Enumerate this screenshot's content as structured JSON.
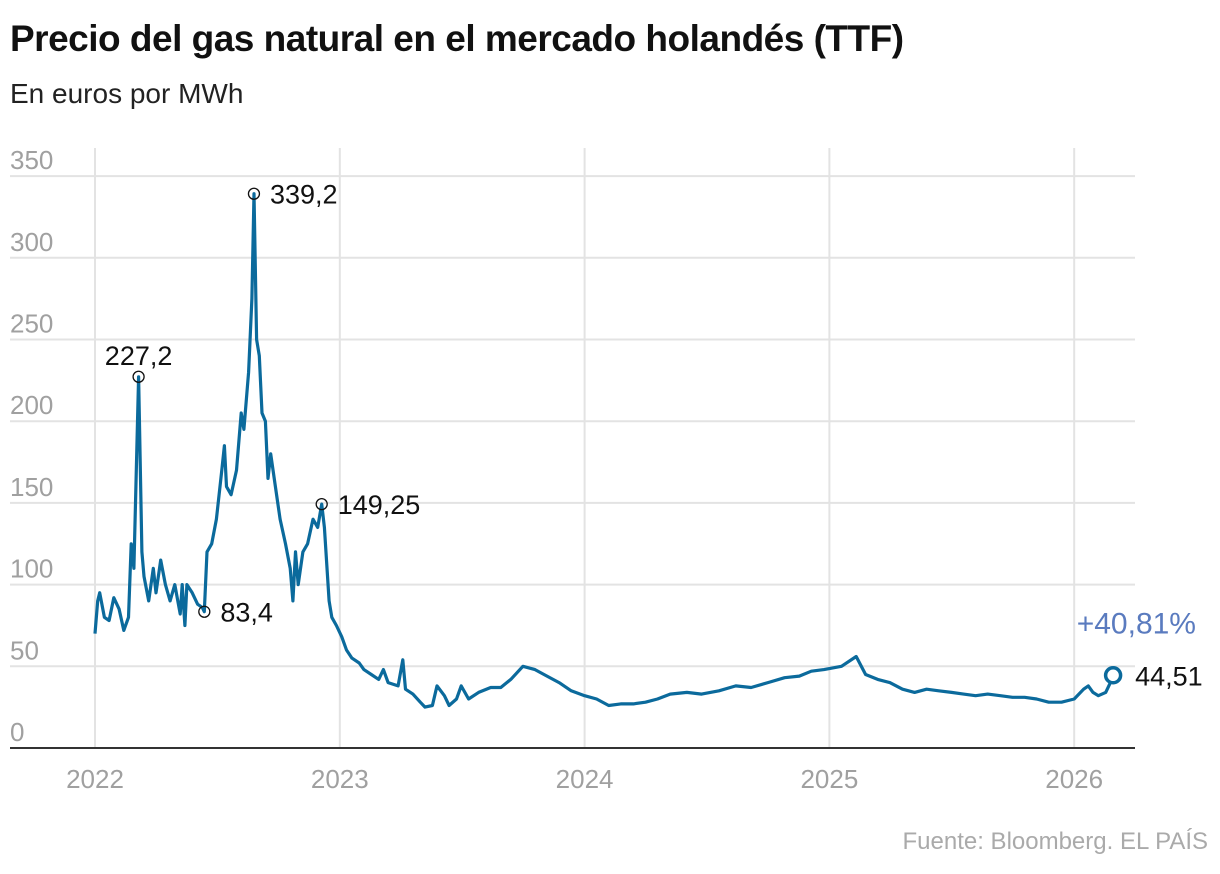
{
  "title": "Precio del gas natural en el mercado holandés (TTF)",
  "subtitle": "En euros por MWh",
  "source": "Fuente: Bloomberg. EL PAÍS",
  "colors": {
    "line": "#0b6a9c",
    "change": "#5a7bbf",
    "grid": "#e3e3e3",
    "tick": "#a0a0a0"
  },
  "chart_data": {
    "type": "line",
    "title": "Precio del gas natural en el mercado holandés (TTF)",
    "ylabel": "En euros por MWh",
    "ylim": [
      0,
      350
    ],
    "yticks": [
      0,
      50,
      100,
      150,
      200,
      250,
      300,
      350
    ],
    "xticks": [
      "2022",
      "2023",
      "2024",
      "2025",
      "2026"
    ],
    "grid": true,
    "annotations": [
      {
        "date": "2022-03-07",
        "value": 227.2,
        "label": "227,2",
        "pos": "top"
      },
      {
        "date": "2022-06-13",
        "value": 83.4,
        "label": "83,4",
        "pos": "right"
      },
      {
        "date": "2022-08-26",
        "value": 339.2,
        "label": "339,2",
        "pos": "right"
      },
      {
        "date": "2022-12-05",
        "value": 149.25,
        "label": "149,25",
        "pos": "right"
      }
    ],
    "last": {
      "date": "2026-02-28",
      "value": 44.51,
      "label": "44,51",
      "change": "+40,81%"
    },
    "points": [
      [
        "2022-01-01",
        70
      ],
      [
        "2022-01-05",
        90
      ],
      [
        "2022-01-08",
        95
      ],
      [
        "2022-01-15",
        80
      ],
      [
        "2022-01-22",
        78
      ],
      [
        "2022-01-29",
        92
      ],
      [
        "2022-02-06",
        85
      ],
      [
        "2022-02-13",
        72
      ],
      [
        "2022-02-20",
        80
      ],
      [
        "2022-02-24",
        125
      ],
      [
        "2022-02-28",
        110
      ],
      [
        "2022-03-07",
        227.2
      ],
      [
        "2022-03-12",
        120
      ],
      [
        "2022-03-15",
        105
      ],
      [
        "2022-03-22",
        90
      ],
      [
        "2022-03-29",
        110
      ],
      [
        "2022-04-02",
        95
      ],
      [
        "2022-04-09",
        115
      ],
      [
        "2022-04-16",
        100
      ],
      [
        "2022-04-23",
        90
      ],
      [
        "2022-04-30",
        100
      ],
      [
        "2022-05-08",
        82
      ],
      [
        "2022-05-11",
        100
      ],
      [
        "2022-05-15",
        75
      ],
      [
        "2022-05-18",
        100
      ],
      [
        "2022-05-26",
        95
      ],
      [
        "2022-06-03",
        88
      ],
      [
        "2022-06-10",
        86
      ],
      [
        "2022-06-13",
        83.4
      ],
      [
        "2022-06-17",
        120
      ],
      [
        "2022-06-24",
        125
      ],
      [
        "2022-07-01",
        140
      ],
      [
        "2022-07-09",
        170
      ],
      [
        "2022-07-13",
        185
      ],
      [
        "2022-07-16",
        160
      ],
      [
        "2022-07-23",
        155
      ],
      [
        "2022-07-31",
        170
      ],
      [
        "2022-08-07",
        205
      ],
      [
        "2022-08-11",
        195
      ],
      [
        "2022-08-18",
        230
      ],
      [
        "2022-08-23",
        275
      ],
      [
        "2022-08-26",
        339.2
      ],
      [
        "2022-08-30",
        250
      ],
      [
        "2022-09-03",
        240
      ],
      [
        "2022-09-07",
        205
      ],
      [
        "2022-09-12",
        200
      ],
      [
        "2022-09-16",
        165
      ],
      [
        "2022-09-20",
        180
      ],
      [
        "2022-09-27",
        160
      ],
      [
        "2022-10-04",
        140
      ],
      [
        "2022-10-12",
        125
      ],
      [
        "2022-10-19",
        110
      ],
      [
        "2022-10-23",
        90
      ],
      [
        "2022-10-27",
        120
      ],
      [
        "2022-10-31",
        100
      ],
      [
        "2022-11-07",
        120
      ],
      [
        "2022-11-14",
        125
      ],
      [
        "2022-11-22",
        140
      ],
      [
        "2022-11-29",
        135
      ],
      [
        "2022-12-05",
        149.25
      ],
      [
        "2022-12-09",
        135
      ],
      [
        "2022-12-16",
        90
      ],
      [
        "2022-12-20",
        80
      ],
      [
        "2022-12-27",
        75
      ],
      [
        "2023-01-04",
        68
      ],
      [
        "2023-01-11",
        60
      ],
      [
        "2023-01-19",
        55
      ],
      [
        "2023-01-30",
        52
      ],
      [
        "2023-02-06",
        48
      ],
      [
        "2023-02-17",
        45
      ],
      [
        "2023-02-28",
        42
      ],
      [
        "2023-03-07",
        48
      ],
      [
        "2023-03-14",
        40
      ],
      [
        "2023-03-29",
        38
      ],
      [
        "2023-04-05",
        54
      ],
      [
        "2023-04-09",
        36
      ],
      [
        "2023-04-20",
        33
      ],
      [
        "2023-05-01",
        28
      ],
      [
        "2023-05-08",
        25
      ],
      [
        "2023-05-19",
        26
      ],
      [
        "2023-05-26",
        38
      ],
      [
        "2023-06-06",
        32
      ],
      [
        "2023-06-13",
        26
      ],
      [
        "2023-06-24",
        30
      ],
      [
        "2023-07-01",
        38
      ],
      [
        "2023-07-12",
        30
      ],
      [
        "2023-07-27",
        34
      ],
      [
        "2023-08-14",
        37
      ],
      [
        "2023-08-29",
        37
      ],
      [
        "2023-09-13",
        42
      ],
      [
        "2023-10-01",
        50
      ],
      [
        "2023-10-19",
        48
      ],
      [
        "2023-11-06",
        44
      ],
      [
        "2023-11-24",
        40
      ],
      [
        "2023-12-12",
        35
      ],
      [
        "2024-01-01",
        32
      ],
      [
        "2024-01-19",
        30
      ],
      [
        "2024-02-06",
        26
      ],
      [
        "2024-02-24",
        27
      ],
      [
        "2024-03-14",
        27
      ],
      [
        "2024-04-01",
        28
      ],
      [
        "2024-04-19",
        30
      ],
      [
        "2024-05-08",
        33
      ],
      [
        "2024-06-02",
        34
      ],
      [
        "2024-06-24",
        33
      ],
      [
        "2024-07-20",
        35
      ],
      [
        "2024-08-14",
        38
      ],
      [
        "2024-09-06",
        37
      ],
      [
        "2024-10-01",
        40
      ],
      [
        "2024-10-26",
        43
      ],
      [
        "2024-11-17",
        44
      ],
      [
        "2024-12-05",
        47
      ],
      [
        "2024-12-24",
        48
      ],
      [
        "2025-01-19",
        50
      ],
      [
        "2025-02-10",
        56
      ],
      [
        "2025-02-24",
        45
      ],
      [
        "2025-03-14",
        42
      ],
      [
        "2025-04-01",
        40
      ],
      [
        "2025-04-20",
        36
      ],
      [
        "2025-05-08",
        34
      ],
      [
        "2025-05-26",
        36
      ],
      [
        "2025-06-13",
        35
      ],
      [
        "2025-07-02",
        34
      ],
      [
        "2025-07-20",
        33
      ],
      [
        "2025-08-07",
        32
      ],
      [
        "2025-08-25",
        33
      ],
      [
        "2025-09-13",
        32
      ],
      [
        "2025-10-01",
        31
      ],
      [
        "2025-10-19",
        31
      ],
      [
        "2025-11-06",
        30
      ],
      [
        "2025-11-24",
        28
      ],
      [
        "2025-12-13",
        28
      ],
      [
        "2026-01-01",
        30
      ],
      [
        "2026-01-15",
        36
      ],
      [
        "2026-01-22",
        38
      ],
      [
        "2026-01-29",
        34
      ],
      [
        "2026-02-06",
        32
      ],
      [
        "2026-02-17",
        34
      ],
      [
        "2026-02-24",
        40
      ],
      [
        "2026-02-28",
        44.51
      ]
    ]
  }
}
